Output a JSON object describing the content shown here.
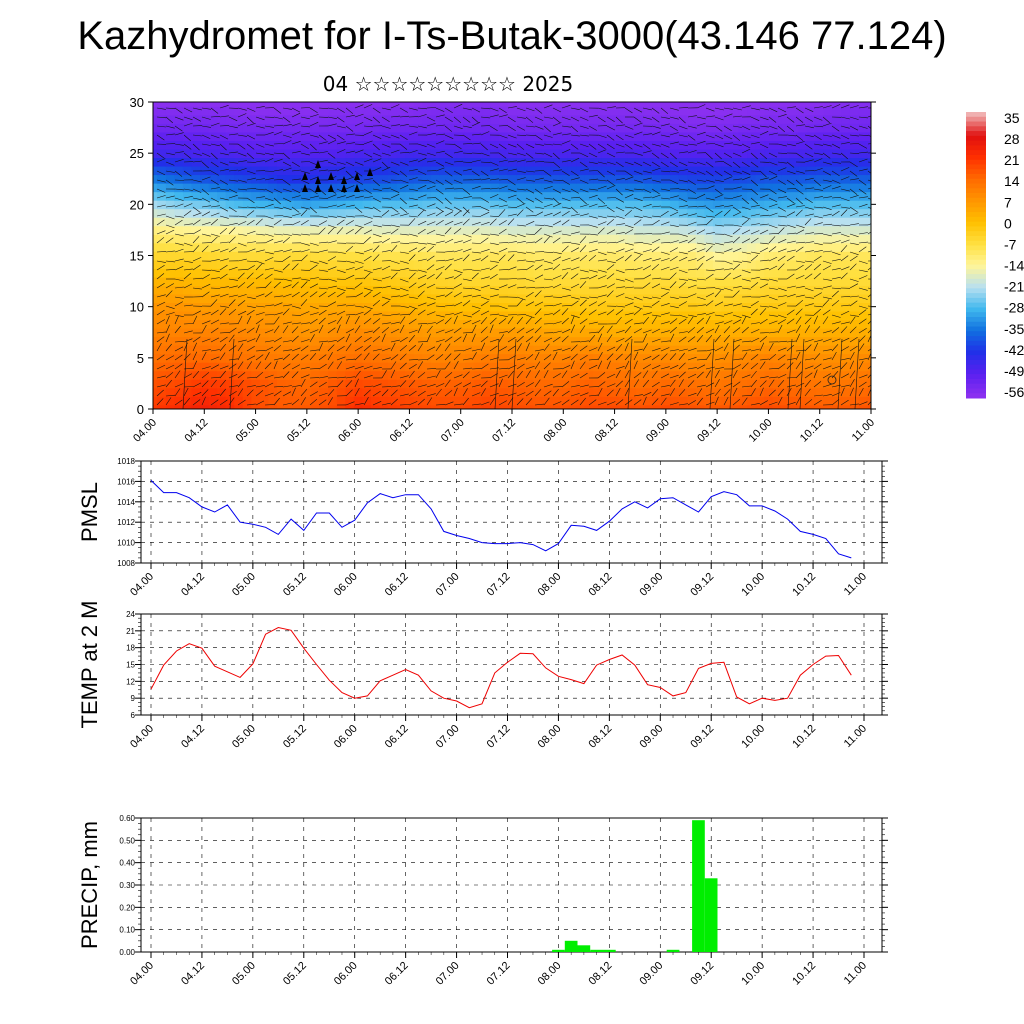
{
  "title": "Kazhydromet for I-Ts-Butak-3000(43.146 77.124)",
  "subtitle": "04 ☆☆☆☆☆☆☆☆☆ 2025",
  "time_labels": [
    "04.00",
    "04.12",
    "05.00",
    "05.12",
    "06.00",
    "06.12",
    "07.00",
    "07.12",
    "08.00",
    "08.12",
    "09.00",
    "09.12",
    "10.00",
    "10.12",
    "11.00"
  ],
  "colorbar": {
    "labels": [
      "35",
      "28",
      "21",
      "14",
      "7",
      "0",
      "-7",
      "-14",
      "-21",
      "-28",
      "-35",
      "-42",
      "-49",
      "-56"
    ],
    "stops": [
      "#f0b0b0",
      "#e01010",
      "#ff3000",
      "#ff6a00",
      "#ff9500",
      "#ffc000",
      "#ffe040",
      "#fff59a",
      "#b8e0f0",
      "#40b8ee",
      "#1070e0",
      "#2030e8",
      "#5a20f0",
      "#8a30f0"
    ]
  },
  "chart_data": [
    {
      "type": "heatmap",
      "title": "",
      "xlabel": "",
      "ylabel": "",
      "ylim": [
        0,
        30
      ],
      "yticks": [
        0,
        5,
        10,
        15,
        20,
        25,
        30
      ],
      "x_categories": [
        "04.00",
        "04.12",
        "05.00",
        "05.12",
        "06.00",
        "06.12",
        "07.00",
        "07.12",
        "08.00",
        "08.12",
        "09.00",
        "09.12",
        "10.00",
        "10.12",
        "11.00"
      ],
      "levels": [
        0,
        2.5,
        5,
        7.5,
        10,
        12.5,
        15,
        17.5,
        20,
        22.5,
        25,
        27.5,
        30
      ],
      "times": [
        "04.00",
        "04.06",
        "04.12",
        "04.18",
        "05.00",
        "05.06",
        "05.12",
        "05.18",
        "06.00",
        "06.06",
        "06.12",
        "06.18",
        "07.00",
        "07.06",
        "07.12",
        "07.18",
        "08.00",
        "08.06",
        "08.12",
        "08.18",
        "09.00",
        "09.06",
        "09.12",
        "09.18",
        "10.00",
        "10.06",
        "10.12",
        "10.18",
        "11.00"
      ],
      "values": [
        [
          20,
          22,
          24,
          22,
          18,
          16,
          16,
          18,
          22,
          20,
          19,
          18,
          18,
          19,
          18,
          17,
          17,
          18,
          18,
          17,
          18,
          17,
          16,
          17,
          18,
          17,
          16,
          16,
          17
        ],
        [
          17,
          18,
          20,
          19,
          17,
          15,
          14,
          16,
          18,
          17,
          16,
          15,
          15,
          16,
          15,
          14,
          14,
          15,
          14,
          13,
          14,
          13,
          12,
          13,
          14,
          13,
          12,
          12,
          13
        ],
        [
          13,
          14,
          14,
          13,
          12,
          11,
          11,
          12,
          13,
          12,
          11,
          10,
          10,
          11,
          11,
          10,
          10,
          11,
          10,
          9,
          9,
          8,
          8,
          9,
          10,
          9,
          8,
          8,
          9
        ],
        [
          10,
          10,
          10,
          10,
          9,
          8,
          7,
          8,
          9,
          8,
          7,
          6,
          6,
          6,
          6,
          5,
          4,
          4,
          3,
          3,
          3,
          3,
          3,
          3,
          3,
          3,
          3,
          3,
          3
        ],
        [
          7,
          7,
          6,
          6,
          5,
          5,
          4,
          4,
          4,
          3,
          2,
          1,
          0,
          0,
          -1,
          -1,
          -1,
          -2,
          -2,
          -2,
          -2,
          -2,
          -3,
          -2,
          -2,
          -2,
          -2,
          -2,
          -2
        ],
        [
          2,
          2,
          1,
          1,
          1,
          0,
          0,
          -1,
          -1,
          -2,
          -3,
          -4,
          -5,
          -5,
          -5,
          -6,
          -6,
          -6,
          -6,
          -6,
          -6,
          -7,
          -7,
          -7,
          -6,
          -6,
          -6,
          -6,
          -6
        ],
        [
          -5,
          -5,
          -5,
          -6,
          -6,
          -6,
          -6,
          -7,
          -7,
          -8,
          -8,
          -9,
          -9,
          -9,
          -9,
          -10,
          -10,
          -10,
          -10,
          -11,
          -11,
          -11,
          -14,
          -13,
          -11,
          -10,
          -9,
          -9,
          -9
        ],
        [
          -12,
          -13,
          -14,
          -14,
          -15,
          -16,
          -16,
          -16,
          -16,
          -17,
          -17,
          -17,
          -17,
          -17,
          -18,
          -18,
          -18,
          -18,
          -18,
          -19,
          -19,
          -20,
          -22,
          -21,
          -20,
          -19,
          -18,
          -18,
          -18
        ],
        [
          -22,
          -24,
          -25,
          -27,
          -28,
          -29,
          -30,
          -29,
          -28,
          -27,
          -27,
          -26,
          -26,
          -26,
          -27,
          -27,
          -27,
          -27,
          -27,
          -27,
          -28,
          -30,
          -31,
          -30,
          -29,
          -28,
          -27,
          -27,
          -27
        ],
        [
          -34,
          -36,
          -38,
          -39,
          -40,
          -42,
          -42,
          -41,
          -40,
          -39,
          -38,
          -37,
          -37,
          -37,
          -38,
          -38,
          -38,
          -38,
          -38,
          -38,
          -39,
          -40,
          -40,
          -39,
          -38,
          -38,
          -37,
          -37,
          -37
        ],
        [
          -46,
          -46,
          -47,
          -47,
          -48,
          -48,
          -48,
          -48,
          -47,
          -47,
          -46,
          -46,
          -46,
          -46,
          -47,
          -47,
          -47,
          -47,
          -47,
          -47,
          -48,
          -48,
          -48,
          -48,
          -47,
          -47,
          -46,
          -46,
          -46
        ],
        [
          -52,
          -52,
          -52,
          -53,
          -53,
          -53,
          -53,
          -53,
          -53,
          -52,
          -52,
          -52,
          -52,
          -52,
          -53,
          -53,
          -53,
          -53,
          -53,
          -53,
          -53,
          -54,
          -54,
          -53,
          -53,
          -53,
          -52,
          -52,
          -52
        ],
        [
          -56,
          -56,
          -56,
          -56,
          -57,
          -57,
          -57,
          -56,
          -56,
          -56,
          -56,
          -55,
          -55,
          -55,
          -56,
          -56,
          -56,
          -56,
          -56,
          -56,
          -57,
          -57,
          -57,
          -57,
          -56,
          -56,
          -56,
          -55,
          -55
        ]
      ]
    },
    {
      "type": "line",
      "title": "",
      "ylabel": "PMSL",
      "ylim": [
        1008,
        1018
      ],
      "yticks": [
        1008,
        1010,
        1012,
        1014,
        1016,
        1018
      ],
      "x_categories": [
        "04.00",
        "04.12",
        "05.00",
        "05.12",
        "06.00",
        "06.12",
        "07.00",
        "07.12",
        "08.00",
        "08.12",
        "09.00",
        "09.12",
        "10.00",
        "10.12",
        "11.00"
      ],
      "x": [
        0,
        1,
        2,
        3,
        4,
        5,
        6,
        7,
        8,
        9,
        10,
        11,
        12,
        13,
        14,
        15,
        16,
        17,
        18,
        19,
        20,
        21,
        22,
        23,
        24,
        25,
        26,
        27,
        28,
        29,
        30,
        31,
        32,
        33,
        34,
        35,
        36,
        37,
        38,
        39,
        40,
        41,
        42,
        43,
        44,
        45,
        46,
        47,
        48,
        49,
        50,
        51,
        52,
        53,
        54,
        55
      ],
      "series": [
        {
          "color": "#0000ee",
          "values": [
            1016.1,
            1014.9,
            1014.9,
            1014.4,
            1013.5,
            1013.0,
            1013.7,
            1012.0,
            1011.8,
            1011.5,
            1010.8,
            1012.3,
            1011.2,
            1012.9,
            1012.9,
            1011.5,
            1012.2,
            1013.9,
            1014.8,
            1014.4,
            1014.7,
            1014.7,
            1013.3,
            1011.1,
            1010.7,
            1010.4,
            1010.0,
            1009.9,
            1009.9,
            1010.0,
            1009.8,
            1009.2,
            1009.9,
            1011.7,
            1011.6,
            1011.2,
            1012.1,
            1013.3,
            1014.0,
            1013.4,
            1014.3,
            1014.4,
            1013.7,
            1013.0,
            1014.5,
            1015.0,
            1014.7,
            1013.6,
            1013.6,
            1013.1,
            1012.3,
            1011.1,
            1010.8,
            1010.4,
            1008.9,
            1008.5
          ]
        }
      ]
    },
    {
      "type": "line",
      "title": "",
      "ylabel": "TEMP at 2 M",
      "ylim": [
        6,
        24
      ],
      "yticks": [
        6,
        9,
        12,
        15,
        18,
        21,
        24
      ],
      "x_categories": [
        "04.00",
        "04.12",
        "05.00",
        "05.12",
        "06.00",
        "06.12",
        "07.00",
        "07.12",
        "08.00",
        "08.12",
        "09.00",
        "09.12",
        "10.00",
        "10.12",
        "11.00"
      ],
      "x": [
        0,
        1,
        2,
        3,
        4,
        5,
        6,
        7,
        8,
        9,
        10,
        11,
        12,
        13,
        14,
        15,
        16,
        17,
        18,
        19,
        20,
        21,
        22,
        23,
        24,
        25,
        26,
        27,
        28,
        29,
        30,
        31,
        32,
        33,
        34,
        35,
        36,
        37,
        38,
        39,
        40,
        41,
        42,
        43,
        44,
        45,
        46,
        47,
        48,
        49,
        50,
        51,
        52,
        53,
        54,
        55
      ],
      "series": [
        {
          "color": "#ee0000",
          "values": [
            10.6,
            14.9,
            17.4,
            18.7,
            17.9,
            14.7,
            13.7,
            12.7,
            15.1,
            20.4,
            21.6,
            21.1,
            17.9,
            15.0,
            12.2,
            10.0,
            9.0,
            9.4,
            12.1,
            13.1,
            14.1,
            13.1,
            10.3,
            9.0,
            8.5,
            7.3,
            8.0,
            13.5,
            15.4,
            17.0,
            16.9,
            14.4,
            12.9,
            12.3,
            11.6,
            14.9,
            15.9,
            16.7,
            14.9,
            11.4,
            10.9,
            9.4,
            10.0,
            14.3,
            15.2,
            15.4,
            9.2,
            8.0,
            9.0,
            8.6,
            9.0,
            13.1,
            15.0,
            16.5,
            16.6,
            13.1
          ]
        }
      ]
    },
    {
      "type": "bar",
      "title": "",
      "ylabel": "PRECIP, mm",
      "ylim": [
        0,
        0.6
      ],
      "yticks": [
        "0.00",
        "0.10",
        "0.20",
        "0.30",
        "0.40",
        "0.50",
        "0.60"
      ],
      "x_categories": [
        "04.00",
        "04.12",
        "05.00",
        "05.12",
        "06.00",
        "06.12",
        "07.00",
        "07.12",
        "08.00",
        "08.12",
        "09.00",
        "09.12",
        "10.00",
        "10.12",
        "11.00"
      ],
      "bars": [
        {
          "x": 32,
          "value": 0.01
        },
        {
          "x": 33,
          "value": 0.05
        },
        {
          "x": 34,
          "value": 0.03
        },
        {
          "x": 35,
          "value": 0.01
        },
        {
          "x": 36,
          "value": 0.01
        },
        {
          "x": 41,
          "value": 0.01
        },
        {
          "x": 43,
          "value": 0.59
        },
        {
          "x": 44,
          "value": 0.33
        }
      ],
      "color": "#00ee00"
    }
  ]
}
